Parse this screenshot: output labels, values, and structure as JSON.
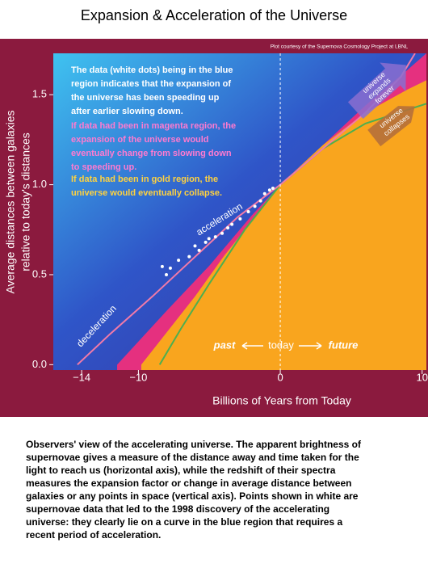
{
  "title": "Expansion & Acceleration of the Universe",
  "chart_data": {
    "type": "line",
    "credit": "Plot courtesy of the Supernova Cosmology Project at LBNL",
    "xlabel": "Billions of Years from Today",
    "ylabel": [
      "Average distances between galaxies",
      "relative to today's distances"
    ],
    "xlim": [
      -16,
      10.3
    ],
    "ylim": [
      -0.03,
      1.73
    ],
    "xticks": [
      {
        "value": -14,
        "label": "−14"
      },
      {
        "value": -10,
        "label": "−10"
      },
      0,
      10
    ],
    "yticks": [
      {
        "value": 0,
        "label": "0.0"
      },
      {
        "value": 0.5,
        "label": "0.5"
      },
      {
        "value": 1,
        "label": "1.0"
      },
      {
        "value": 1.5,
        "label": "1.5"
      }
    ],
    "today_line_x": 0,
    "series": [
      {
        "color": "#e5307f",
        "area": "right",
        "x": [
          -11.5,
          -8,
          -5,
          -2,
          0,
          3,
          6,
          9,
          10.3
        ],
        "values": [
          0,
          0.3,
          0.55,
          0.83,
          1,
          1.22,
          1.44,
          1.64,
          1.73
        ]
      },
      {
        "color": "#f9a51e",
        "area": "right",
        "x": [
          -9.8,
          -8,
          -6,
          -4,
          -2,
          0,
          3,
          6,
          9,
          10.3
        ],
        "values": [
          0,
          0.18,
          0.38,
          0.6,
          0.8,
          1,
          1.22,
          1.4,
          1.53,
          1.58
        ]
      },
      {
        "color": "#4caf50",
        "x": [
          -8.5,
          -7,
          -5,
          -2.5,
          0,
          3,
          6,
          10.3
        ],
        "values": [
          0,
          0.2,
          0.45,
          0.75,
          1,
          1.2,
          1.34,
          1.45
        ]
      },
      {
        "color": "#f27aa8",
        "x": [
          -14.3,
          -12,
          -9,
          -6,
          -3,
          0,
          3,
          6,
          8.5,
          9.5
        ],
        "values": [
          0,
          0.17,
          0.38,
          0.6,
          0.82,
          1,
          1.2,
          1.4,
          1.6,
          1.73
        ]
      }
    ],
    "points": {
      "color": "#ffffff",
      "x": [
        -8.32,
        -7.75,
        -8.03,
        -7.17,
        -6.42,
        -6.01,
        -5.72,
        -5.26,
        -5.03,
        -4.57,
        -4.1,
        -3.7,
        -3.41,
        -2.83,
        -2.25,
        -1.79,
        -1.39,
        -1.1,
        -0.75,
        -0.52
      ],
      "values": [
        0.545,
        0.536,
        0.5,
        0.58,
        0.6,
        0.66,
        0.635,
        0.68,
        0.7,
        0.71,
        0.73,
        0.76,
        0.78,
        0.81,
        0.85,
        0.88,
        0.91,
        0.95,
        0.97,
        0.98
      ]
    },
    "annotations": {
      "blue": [
        "The data (white dots) being in the blue",
        "region indicates that the expansion of",
        "the universe has been speeding up",
        "after earlier slowing down."
      ],
      "magenta": [
        "If data had been in magenta region, the",
        "expansion of the universe would",
        "eventually change from slowing down",
        "to speeding up."
      ],
      "gold": [
        "If data had been in gold region, the",
        "universe would eventually collapse."
      ],
      "acceleration": "acceleration",
      "deceleration": "deceleration",
      "past": "past",
      "today": "today",
      "future": "future",
      "expands": [
        "universe",
        "expands",
        "forever"
      ],
      "collapses": [
        "universe",
        "collapses"
      ]
    }
  },
  "caption": [
    "Observers' view of the accelerating universe. The apparent brightness of",
    "supernovae gives a measure of the distance away and time taken for the",
    "light to reach us (horizontal axis), while the redshift of their spectra",
    "measures the expansion factor or change in average distance between",
    "galaxies or any points in space (vertical axis). Points shown in white are",
    "supernovae data that led to the 1998 discovery of the accelerating",
    "universe: they clearly lie on a curve in the blue region that requires a",
    "recent period of acceleration."
  ]
}
